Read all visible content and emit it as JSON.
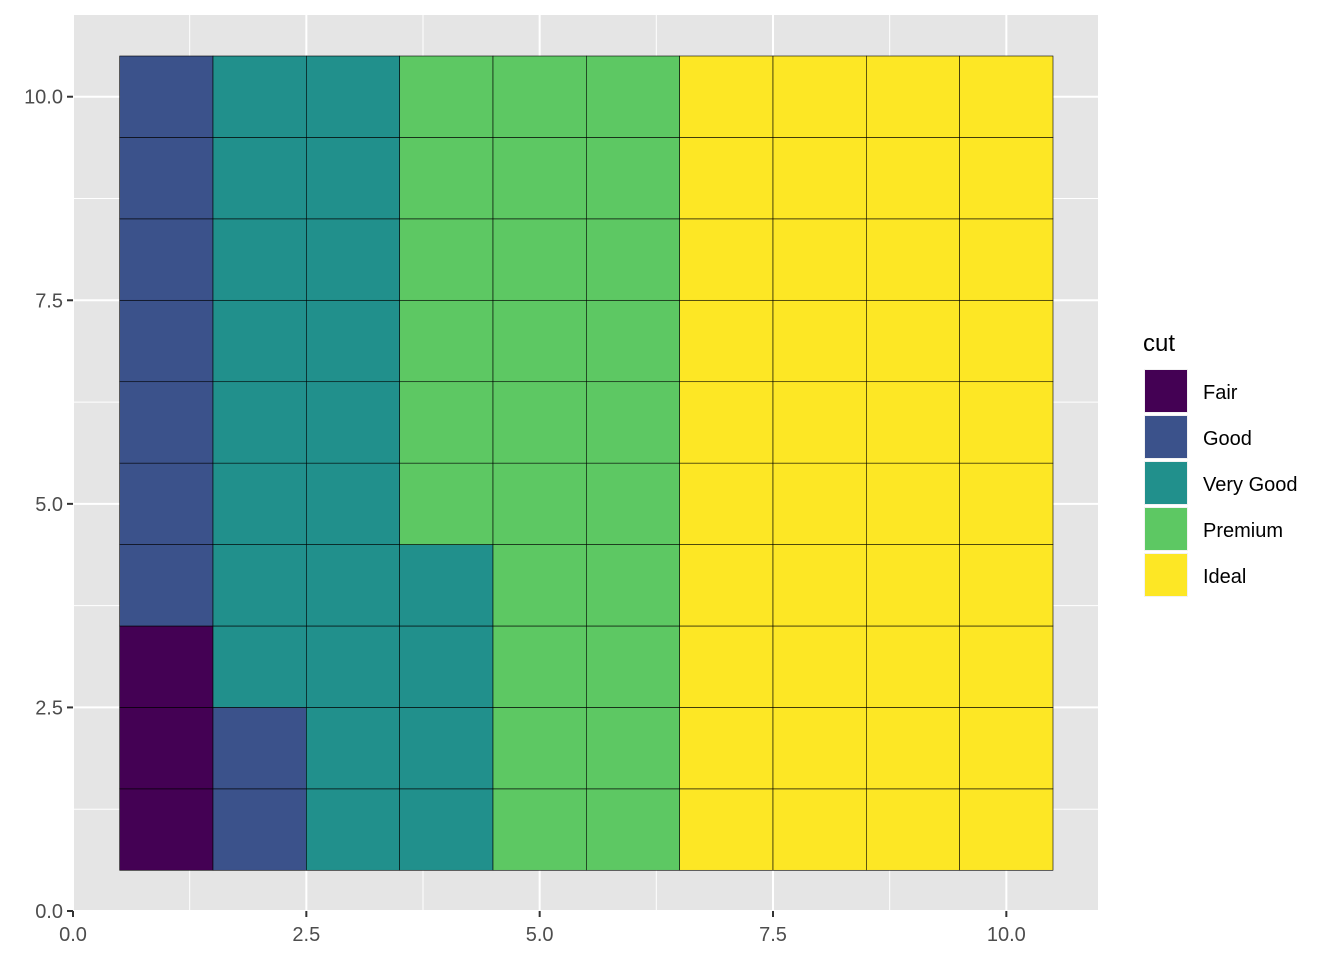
{
  "chart_data": {
    "type": "heatmap",
    "subtype": "waffle",
    "title": "",
    "xlabel": "",
    "ylabel": "",
    "xlim": [
      0,
      10.5
    ],
    "ylim": [
      0,
      10.5
    ],
    "x_ticks": [
      0,
      2.5,
      5,
      7.5,
      10
    ],
    "x_tick_labels": [
      "0.0",
      "2.5",
      "5.0",
      "7.5",
      "10.0"
    ],
    "y_ticks": [
      0,
      2.5,
      5,
      7.5,
      10
    ],
    "y_tick_labels": [
      "0.0",
      "2.5",
      "5.0",
      "7.5",
      "10.0"
    ],
    "grid": true,
    "legend": {
      "title": "cut",
      "position": "right",
      "entries": [
        {
          "name": "Fair",
          "color": "#440154"
        },
        {
          "name": "Good",
          "color": "#3B528B"
        },
        {
          "name": "Very Good",
          "color": "#21908C"
        },
        {
          "name": "Premium",
          "color": "#5DC863"
        },
        {
          "name": "Ideal",
          "color": "#FDE725"
        }
      ]
    },
    "x": [
      1,
      2,
      3,
      4,
      5,
      6,
      7,
      8,
      9,
      10
    ],
    "y": [
      1,
      2,
      3,
      4,
      5,
      6,
      7,
      8,
      9,
      10
    ],
    "cells_by_column": [
      [
        "Fair",
        "Fair",
        "Fair",
        "Good",
        "Good",
        "Good",
        "Good",
        "Good",
        "Good",
        "Good"
      ],
      [
        "Good",
        "Good",
        "Very Good",
        "Very Good",
        "Very Good",
        "Very Good",
        "Very Good",
        "Very Good",
        "Very Good",
        "Very Good"
      ],
      [
        "Very Good",
        "Very Good",
        "Very Good",
        "Very Good",
        "Very Good",
        "Very Good",
        "Very Good",
        "Very Good",
        "Very Good",
        "Very Good"
      ],
      [
        "Very Good",
        "Very Good",
        "Very Good",
        "Very Good",
        "Premium",
        "Premium",
        "Premium",
        "Premium",
        "Premium",
        "Premium"
      ],
      [
        "Premium",
        "Premium",
        "Premium",
        "Premium",
        "Premium",
        "Premium",
        "Premium",
        "Premium",
        "Premium",
        "Premium"
      ],
      [
        "Premium",
        "Premium",
        "Premium",
        "Premium",
        "Premium",
        "Premium",
        "Premium",
        "Premium",
        "Premium",
        "Premium"
      ],
      [
        "Ideal",
        "Ideal",
        "Ideal",
        "Ideal",
        "Ideal",
        "Ideal",
        "Ideal",
        "Ideal",
        "Ideal",
        "Ideal"
      ],
      [
        "Ideal",
        "Ideal",
        "Ideal",
        "Ideal",
        "Ideal",
        "Ideal",
        "Ideal",
        "Ideal",
        "Ideal",
        "Ideal"
      ],
      [
        "Ideal",
        "Ideal",
        "Ideal",
        "Ideal",
        "Ideal",
        "Ideal",
        "Ideal",
        "Ideal",
        "Ideal",
        "Ideal"
      ],
      [
        "Ideal",
        "Ideal",
        "Ideal",
        "Ideal",
        "Ideal",
        "Ideal",
        "Ideal",
        "Ideal",
        "Ideal",
        "Ideal"
      ]
    ],
    "counts": {
      "Fair": 3,
      "Good": 9,
      "Very Good": 21,
      "Premium": 27,
      "Ideal": 40
    },
    "panel_color": "#E5E5E5",
    "grid_color": "#FFFFFF",
    "tile_border_color": "#000000"
  }
}
